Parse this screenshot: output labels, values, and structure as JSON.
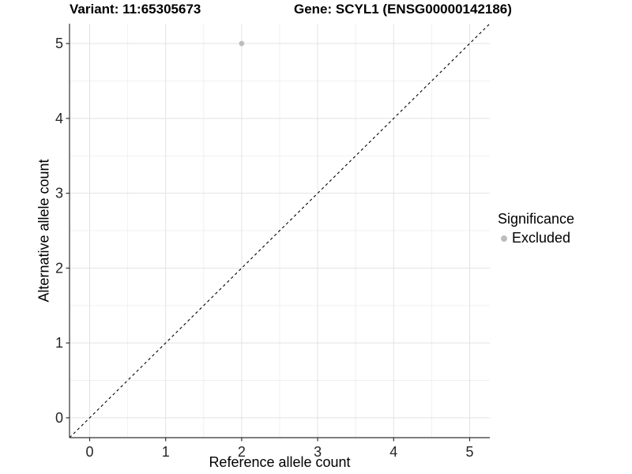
{
  "chart_data": {
    "type": "scatter",
    "title_left": "Variant: 11:65305673",
    "title_right": "Gene: SCYL1 (ENSG00000142186)",
    "xlabel": "Reference allele count",
    "ylabel": "Alternative allele count",
    "xlim": [
      -0.265,
      5.265
    ],
    "ylim": [
      -0.265,
      5.265
    ],
    "x_ticks": [
      0,
      1,
      2,
      3,
      4,
      5
    ],
    "y_ticks": [
      0,
      1,
      2,
      3,
      4,
      5
    ],
    "x_minor_ticks": [
      0.5,
      1.5,
      2.5,
      3.5,
      4.5
    ],
    "y_minor_ticks": [
      0.5,
      1.5,
      2.5,
      3.5,
      4.5
    ],
    "grid": "on",
    "legend_position": "right",
    "series": [
      {
        "name": "Excluded",
        "color": "#bdbdbd",
        "points": [
          {
            "x": 2,
            "y": 5
          }
        ]
      }
    ],
    "reference_line": {
      "slope": 1,
      "intercept": 0,
      "style": "dashed",
      "color": "#000000"
    }
  },
  "legend": {
    "title": "Significance",
    "items": [
      {
        "label": "Excluded",
        "color": "#bdbdbd"
      }
    ]
  },
  "colors": {
    "background": "#ffffff",
    "grid_major": "#e2e2e2",
    "grid_minor": "#f0f0f0",
    "axis_line": "#333333",
    "tick_text": "#262626",
    "point": "#bdbdbd",
    "dashed_line": "#000000"
  }
}
